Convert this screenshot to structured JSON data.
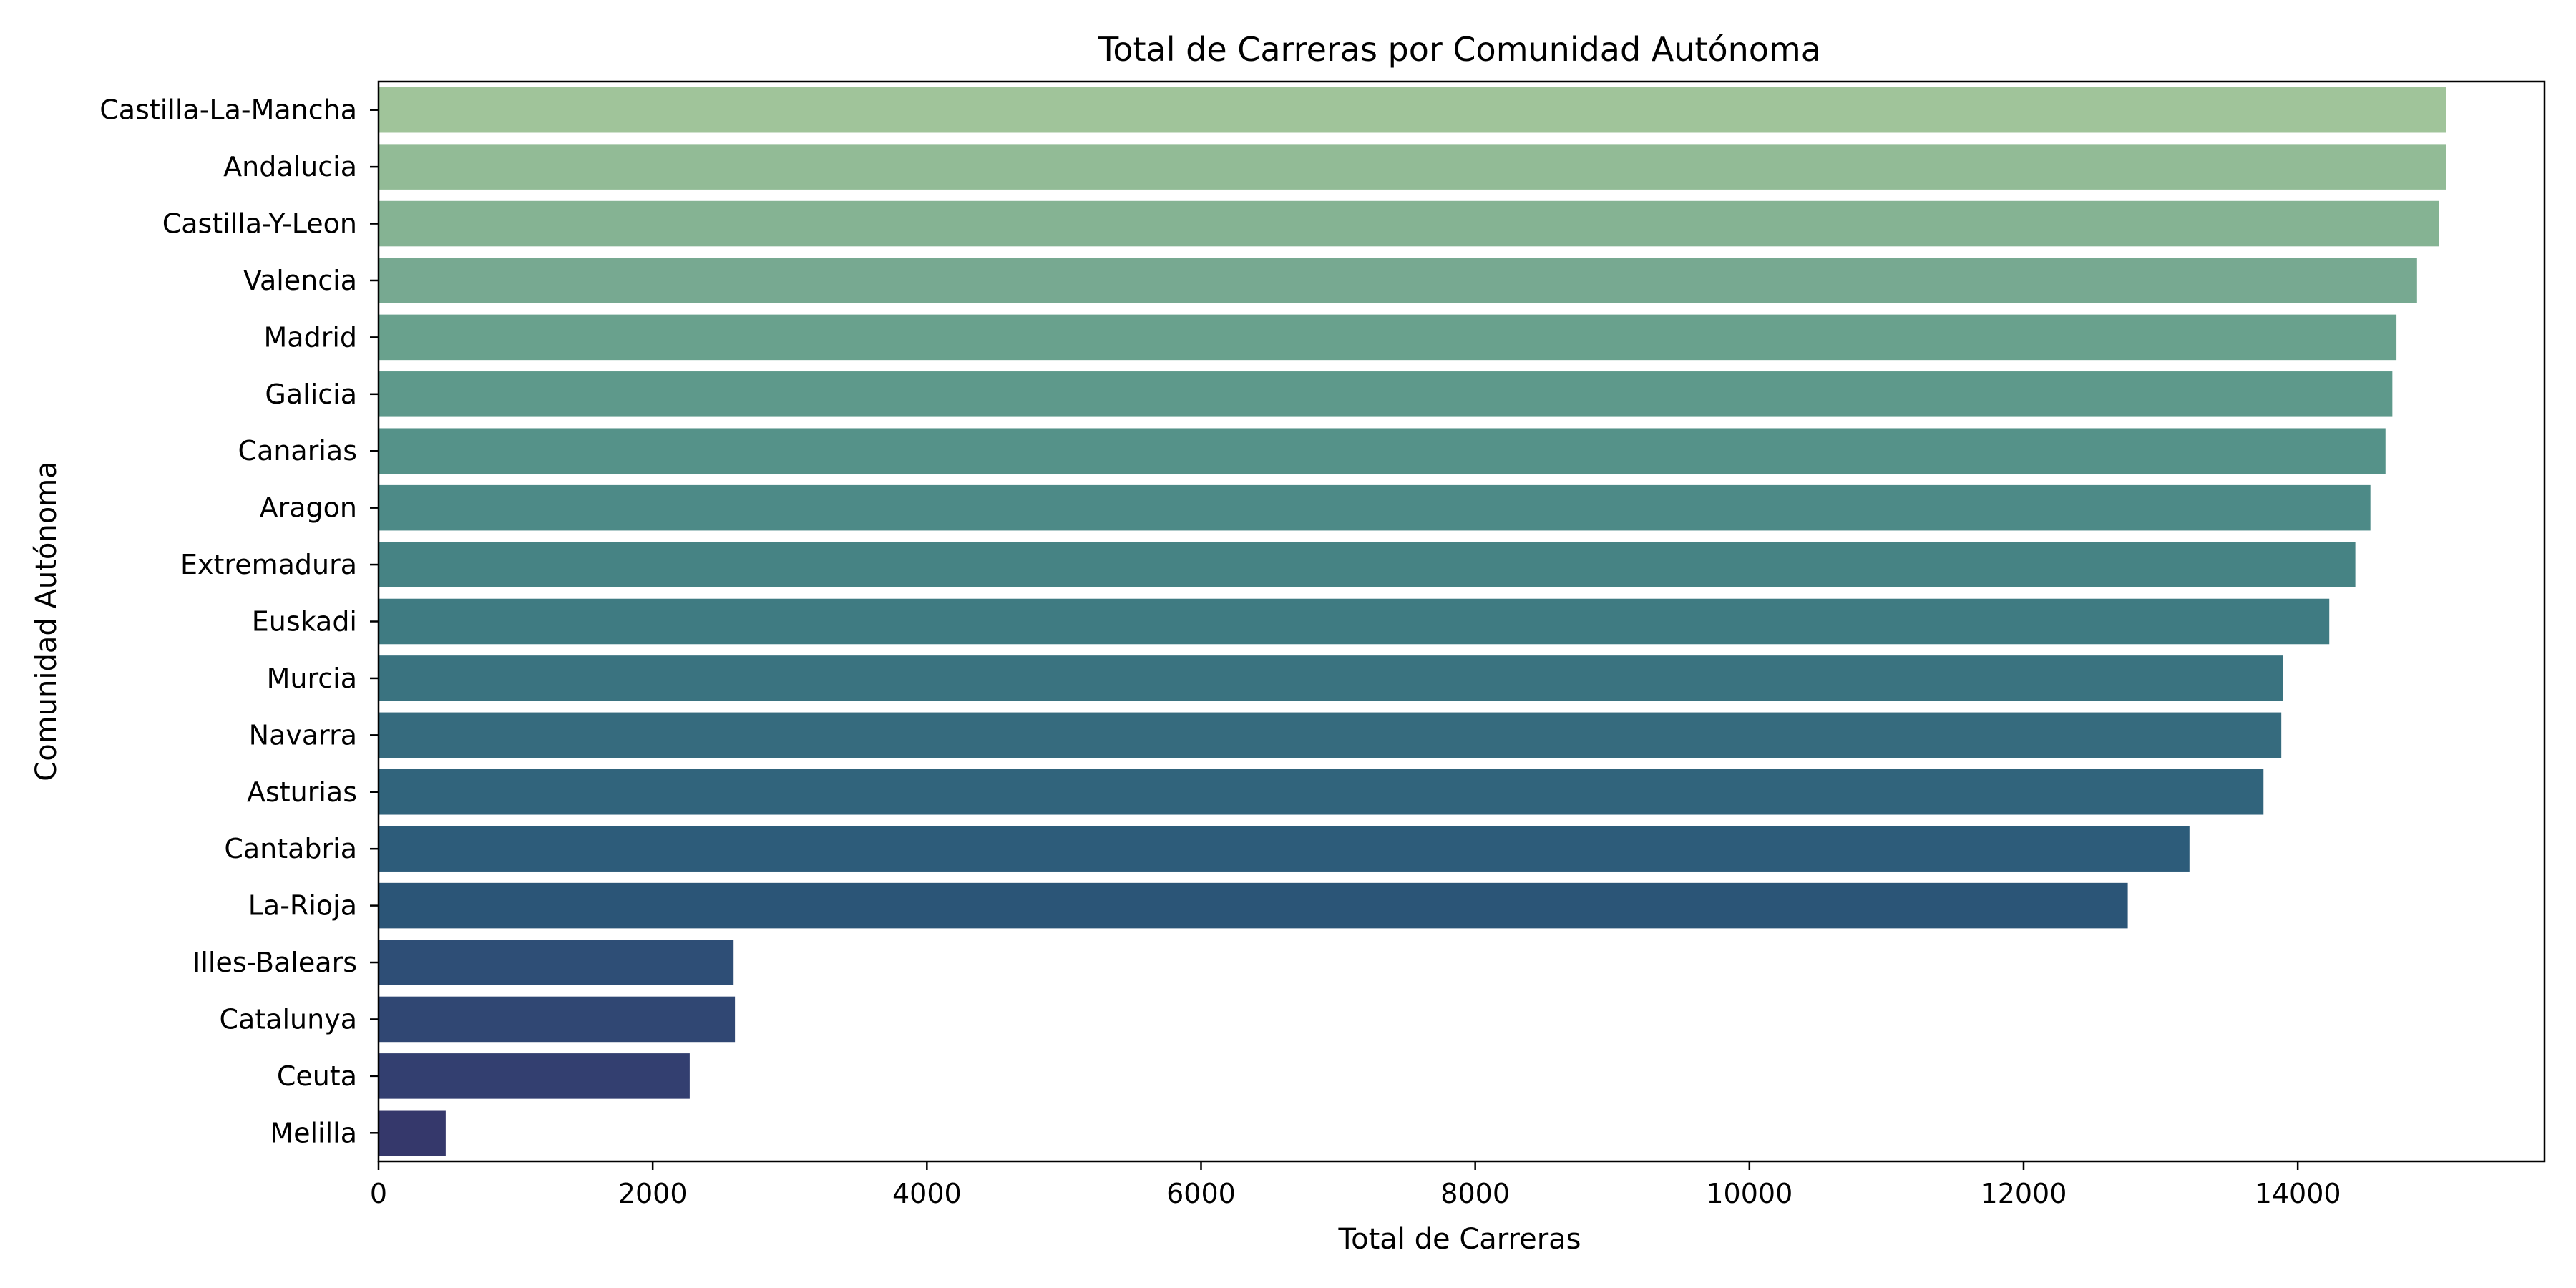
{
  "chart_data": {
    "type": "bar",
    "orientation": "horizontal",
    "title": "Total de Carreras por Comunidad Autónoma",
    "xlabel": "Total de Carreras",
    "ylabel": "Comunidad Autónoma",
    "xlim": [
      0,
      15800
    ],
    "xticks": [
      0,
      2000,
      4000,
      6000,
      8000,
      10000,
      12000,
      14000
    ],
    "grid": false,
    "categories": [
      "Castilla-La-Mancha",
      "Andalucia",
      "Castilla-Y-Leon",
      "Valencia",
      "Madrid",
      "Galicia",
      "Canarias",
      "Aragon",
      "Extremadura",
      "Euskadi",
      "Murcia",
      "Navarra",
      "Asturias",
      "Cantabria",
      "La-Rioja",
      "Illes-Balears",
      "Catalunya",
      "Ceuta",
      "Melilla"
    ],
    "values": [
      15080,
      15080,
      15030,
      14870,
      14720,
      14690,
      14640,
      14530,
      14420,
      14230,
      13890,
      13880,
      13750,
      13210,
      12760,
      2590,
      2600,
      2270,
      490
    ],
    "colors": [
      "#a0c49a",
      "#92bb96",
      "#85b393",
      "#77a991",
      "#69a18d",
      "#5e998b",
      "#559289",
      "#4d8a87",
      "#468384",
      "#3f7b82",
      "#3a7380",
      "#366b7e",
      "#31647c",
      "#2d5c7a",
      "#2b5577",
      "#2e4e76",
      "#304773",
      "#333f70",
      "#35386b"
    ]
  }
}
